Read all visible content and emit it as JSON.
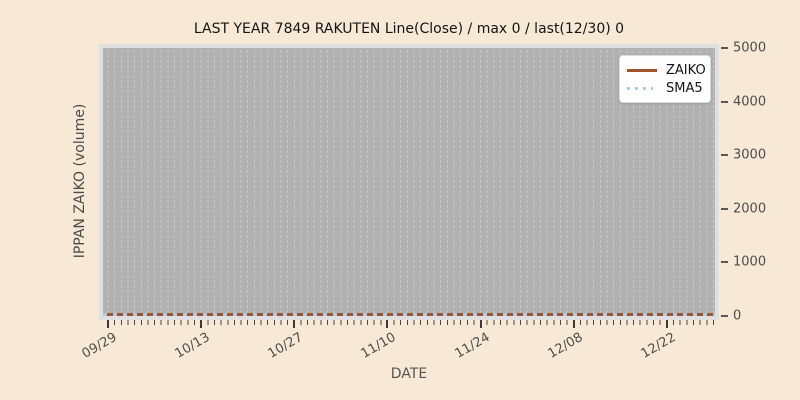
{
  "window": {
    "background_color": "#f8e9d6"
  },
  "chart_data": {
    "type": "line",
    "title": "LAST YEAR 7849 RAKUTEN Line(Close) / max 0 / last(12/30) 0",
    "xlabel": "DATE",
    "ylabel": "IPPAN ZAIKO (volume)",
    "ylim": [
      0,
      5000
    ],
    "yticks": [
      0,
      1000,
      2000,
      3000,
      4000,
      5000
    ],
    "xtick_labels": [
      "09/29",
      "10/13",
      "10/27",
      "11/10",
      "11/24",
      "12/08",
      "12/22"
    ],
    "x_start_date": "09/29",
    "x_end_date": "12/30",
    "x_major_interval_days": 14,
    "grid": {
      "vertical": true,
      "horizontal": false,
      "style": "dashed",
      "interval": "daily"
    },
    "legend": {
      "position": "upper right",
      "entries": [
        "ZAIKO",
        "SMA5"
      ]
    },
    "series": [
      {
        "name": "ZAIKO",
        "color": "#a0522d",
        "style": "solid",
        "constant_value": 0,
        "values": [
          0,
          0,
          0,
          0,
          0,
          0,
          0
        ]
      },
      {
        "name": "SMA5",
        "color": "#a8cce8",
        "style": "dotted",
        "constant_value": 0,
        "values": [
          0,
          0,
          0,
          0,
          0,
          0,
          0
        ]
      }
    ],
    "stats": {
      "max": 0,
      "last_date": "12/30",
      "last_value": 0
    },
    "plot_colors": {
      "plot_bg": "#b1b1b1",
      "grid_line": "#c7c7c7",
      "frame": "#e0e0e0",
      "tick_text": "#4d4d4d",
      "title_text": "#141414"
    }
  }
}
